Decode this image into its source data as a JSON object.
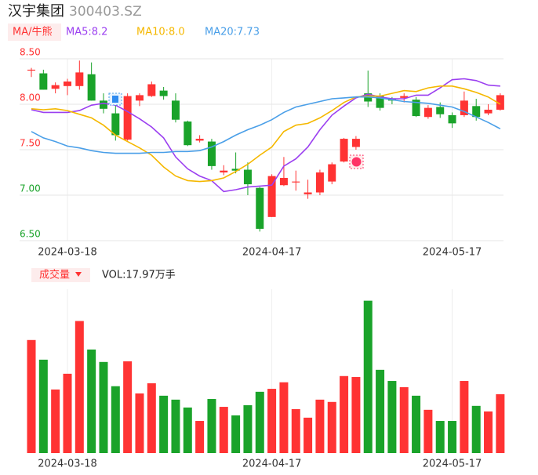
{
  "header": {
    "title": "汉宇集团",
    "code": "300403.SZ"
  },
  "chart_data": [
    {
      "type": "candlestick",
      "legend_label": "MA/牛熊",
      "categories": [
        null,
        null,
        null,
        "2024-03-18",
        null,
        null,
        null,
        null,
        null,
        null,
        null,
        null,
        null,
        null,
        null,
        null,
        null,
        null,
        null,
        null,
        "2024-04-17",
        null,
        null,
        null,
        null,
        null,
        null,
        null,
        null,
        null,
        null,
        null,
        null,
        null,
        null,
        "2024-05-17",
        null,
        null,
        null,
        null
      ],
      "open": [
        8.37,
        8.34,
        8.17,
        8.2,
        8.2,
        8.33,
        8.04,
        7.9,
        7.61,
        8.04,
        8.09,
        8.15,
        8.04,
        7.81,
        7.6,
        7.59,
        7.25,
        7.29,
        7.28,
        7.08,
        6.76,
        7.11,
        7.14,
        7.01,
        7.03,
        7.15,
        7.37,
        7.53,
        8.12,
        8.09,
        8.06,
        8.07,
        8.05,
        7.86,
        7.97,
        7.88,
        7.88,
        7.98,
        7.9,
        7.94
      ],
      "high": [
        8.4,
        8.38,
        8.24,
        8.28,
        8.48,
        8.46,
        8.12,
        8.0,
        8.12,
        8.12,
        8.25,
        8.19,
        8.12,
        7.82,
        7.66,
        7.62,
        7.33,
        7.47,
        7.36,
        7.09,
        7.23,
        7.42,
        7.27,
        7.17,
        7.28,
        7.36,
        7.63,
        7.65,
        8.37,
        8.12,
        8.08,
        8.12,
        8.08,
        7.99,
        8.02,
        7.91,
        8.14,
        8.06,
        8.0,
        8.12
      ],
      "low": [
        8.3,
        8.16,
        8.12,
        8.1,
        8.16,
        8.04,
        7.9,
        7.6,
        7.6,
        7.98,
        8.08,
        8.05,
        7.8,
        7.54,
        7.58,
        7.28,
        7.22,
        7.24,
        7.0,
        6.6,
        6.76,
        7.1,
        7.05,
        6.96,
        7.0,
        7.12,
        7.36,
        7.5,
        7.97,
        7.93,
        8.0,
        8.02,
        7.86,
        7.84,
        7.85,
        7.74,
        7.86,
        7.82,
        7.88,
        7.93
      ],
      "close": [
        8.38,
        8.16,
        8.21,
        8.25,
        8.35,
        8.04,
        7.95,
        7.66,
        8.09,
        8.1,
        8.22,
        8.09,
        7.83,
        7.55,
        7.62,
        7.32,
        7.27,
        7.27,
        7.12,
        6.63,
        7.21,
        7.19,
        7.15,
        7.03,
        7.25,
        7.34,
        7.62,
        7.62,
        8.03,
        7.96,
        8.04,
        8.09,
        7.87,
        7.96,
        7.89,
        7.79,
        8.04,
        7.86,
        7.94,
        8.1
      ],
      "up_color": "#ff3333",
      "down_color": "#1aa32a",
      "series": [
        {
          "name": "MA5:8.2",
          "color": "#9b3ff0",
          "values": [
            7.94,
            7.91,
            7.91,
            7.91,
            7.93,
            7.99,
            8.01,
            7.99,
            7.92,
            7.84,
            7.75,
            7.63,
            7.42,
            7.29,
            7.21,
            7.16,
            7.04,
            7.06,
            7.09,
            7.1,
            7.11,
            7.32,
            7.4,
            7.53,
            7.72,
            7.88,
            7.98,
            8.07,
            8.11,
            8.08,
            8.06,
            8.06,
            8.1,
            8.1,
            8.18,
            8.27,
            8.28,
            8.26,
            8.21,
            8.2
          ]
        },
        {
          "name": "MA10:8.0",
          "color": "#f5b800",
          "values": [
            7.95,
            7.94,
            7.95,
            7.93,
            7.89,
            7.85,
            7.77,
            7.66,
            7.59,
            7.52,
            7.44,
            7.31,
            7.21,
            7.16,
            7.15,
            7.16,
            7.19,
            7.26,
            7.34,
            7.44,
            7.53,
            7.7,
            7.77,
            7.79,
            7.85,
            7.93,
            8.02,
            8.08,
            8.09,
            8.09,
            8.12,
            8.15,
            8.14,
            8.18,
            8.2,
            8.2,
            8.17,
            8.13,
            8.08,
            8.0
          ]
        },
        {
          "name": "MA20:7.73",
          "color": "#4a9fe8",
          "values": [
            7.7,
            7.63,
            7.59,
            7.54,
            7.52,
            7.49,
            7.47,
            7.46,
            7.46,
            7.46,
            7.47,
            7.47,
            7.48,
            7.48,
            7.49,
            7.53,
            7.59,
            7.66,
            7.72,
            7.77,
            7.83,
            7.91,
            7.97,
            8.0,
            8.03,
            8.06,
            8.07,
            8.08,
            8.08,
            8.07,
            8.05,
            8.03,
            8.02,
            8.01,
            7.99,
            7.97,
            7.92,
            7.86,
            7.8,
            7.73
          ]
        }
      ],
      "ylim": [
        6.5,
        8.5
      ],
      "yticks": [
        {
          "value": 8.5,
          "label": "8.50"
        },
        {
          "value": 8.0,
          "label": "8.00"
        },
        {
          "value": 7.5,
          "label": "7.50"
        },
        {
          "value": 7.0,
          "label": "7.00"
        },
        {
          "value": 6.5,
          "label": "6.50"
        }
      ],
      "ytick_colors": [
        "#ff3333",
        "#ff3333",
        "#ff3333",
        "#1aa32a",
        "#1aa32a"
      ],
      "grid": true
    },
    {
      "type": "bar",
      "legend_label": "成交量",
      "value_label": "VOL:17.97万手",
      "categories": [
        null,
        null,
        null,
        "2024-03-18",
        null,
        null,
        null,
        null,
        null,
        null,
        null,
        null,
        null,
        null,
        null,
        null,
        null,
        null,
        null,
        null,
        "2024-04-17",
        null,
        null,
        null,
        null,
        null,
        null,
        null,
        null,
        null,
        null,
        null,
        null,
        null,
        null,
        "2024-05-17",
        null,
        null,
        null,
        null
      ],
      "values": [
        34.5,
        28.5,
        19.4,
        24.2,
        40.3,
        31.6,
        27.8,
        20.4,
        28.0,
        18.2,
        21.3,
        17.5,
        16.3,
        13.9,
        9.8,
        16.5,
        14.1,
        11.5,
        14.6,
        18.7,
        19.6,
        21.6,
        13.4,
        10.8,
        16.3,
        15.6,
        23.5,
        23.2,
        46.5,
        25.4,
        22.0,
        20.1,
        17.5,
        13.2,
        9.8,
        9.8,
        22.0,
        14.4,
        12.7,
        17.97
      ],
      "ylim": [
        0,
        50
      ]
    }
  ]
}
